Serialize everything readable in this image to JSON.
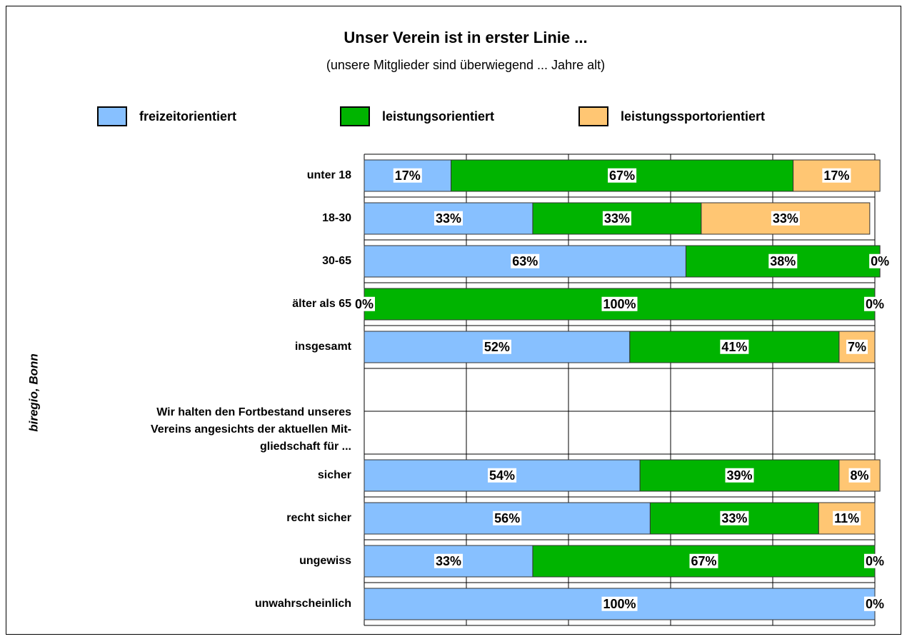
{
  "chart_data": {
    "type": "stacked_barh",
    "title": "Unser Verein ist in erster Linie ...",
    "subtitle": "(unsere Mitglieder sind überwiegend ... Jahre alt)",
    "annotation": "biregio, Bonn",
    "categories": [
      "unter 18",
      "18-30",
      "30-65",
      "älter als 65",
      "insgesamt",
      null,
      [
        "Wir halten den Fortbestand unseres",
        "Vereins angesichts der aktuellen Mit-",
        "gliedschaft für ..."
      ],
      "sicher",
      "recht sicher",
      "ungewiss",
      "unwahrscheinlich"
    ],
    "series": [
      {
        "name": "freizeitorientiert",
        "color": "#87c0ff",
        "values": [
          17,
          33,
          63,
          0,
          52,
          null,
          null,
          54,
          56,
          33,
          100
        ],
        "value_labels": [
          "17%",
          "33%",
          "63%",
          "0%",
          "52%",
          null,
          null,
          "54%",
          "56%",
          "33%",
          "100%"
        ]
      },
      {
        "name": "leistungsorientiert",
        "color": "#00b400",
        "values": [
          67,
          33,
          38,
          100,
          41,
          null,
          null,
          39,
          33,
          67,
          0
        ],
        "value_labels": [
          "67%",
          "33%",
          "38%",
          "100%",
          "41%",
          null,
          null,
          "39%",
          "33%",
          "67%",
          "0%"
        ]
      },
      {
        "name": "leistungssportorientiert",
        "color": "#ffc673",
        "values": [
          17,
          33,
          0,
          0,
          7,
          null,
          null,
          8,
          11,
          0,
          0
        ],
        "value_labels": [
          "17%",
          "33%",
          "0%",
          "0%",
          "7%",
          null,
          null,
          "8%",
          "11%",
          "0%",
          "0%"
        ]
      }
    ],
    "xlim": [
      0,
      100
    ],
    "xticks": [
      0,
      20,
      40,
      60,
      80,
      100
    ],
    "grid": true,
    "legend": "top"
  }
}
